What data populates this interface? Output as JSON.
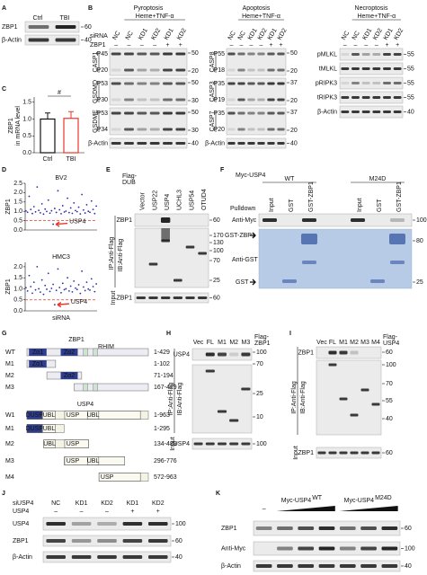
{
  "chart_data": [
    {
      "type": "bar",
      "panel_label": "C",
      "ylabel": [
        "ZBP1",
        "in mRNA level"
      ],
      "categories": [
        "Ctrl",
        "TBI"
      ],
      "values": [
        1.0,
        1.02
      ],
      "errors": [
        0.18,
        0.2
      ],
      "colors": [
        "#111111",
        "#e8372c"
      ],
      "ylim": [
        0,
        1.6
      ],
      "yticks": [
        {
          "value": 0,
          "label": "0.0"
        },
        {
          "value": 0.5,
          "label": "0.5"
        },
        {
          "value": 1,
          "label": "1.0"
        },
        {
          "value": 1.5,
          "label": "1.5"
        }
      ],
      "annotation": "#"
    },
    {
      "type": "scatter",
      "panel_label": "D",
      "title": "BV2",
      "ylabel": "ZBP1",
      "annotation": "USP4",
      "color": "#2b2ba8",
      "reference_line": 0.5,
      "reference_color": "#e8372c",
      "ylim": [
        0,
        2.5
      ],
      "yticks": [
        {
          "value": 0,
          "label": "0.0"
        },
        {
          "value": 0.5,
          "label": "0.5"
        },
        {
          "value": 1,
          "label": "1.0"
        },
        {
          "value": 1.5,
          "label": "1.5"
        },
        {
          "value": 2,
          "label": "2.0"
        },
        {
          "value": 2.5,
          "label": "2.5"
        }
      ],
      "values": [
        1.02,
        0.95,
        1.8,
        1.1,
        0.88,
        1.25,
        0.97,
        2.3,
        1.05,
        0.92,
        1.4,
        0.85,
        1.12,
        0.99,
        1.6,
        0.9,
        1.03,
        0.31,
        1.15,
        0.94,
        2.1,
        1.08,
        0.87,
        1.3,
        0.96,
        1.01,
        1.7,
        0.93,
        1.18,
        0.89,
        1.45,
        1.04,
        0.98,
        1.22,
        0.86,
        1.9,
        1.07,
        0.91,
        1.35,
        1.0,
        0.95,
        1.55,
        1.1,
        0.88,
        1.28
      ]
    },
    {
      "type": "scatter",
      "title": "HMC3",
      "ylabel": "ZBP1",
      "xlabel": "siRNA",
      "annotation": "USP4",
      "color": "#2b2ba8",
      "reference_line": 0.5,
      "reference_color": "#e8372c",
      "ylim": [
        0,
        2.2
      ],
      "yticks": [
        {
          "value": 0,
          "label": "0.0"
        },
        {
          "value": 0.5,
          "label": "0.5"
        },
        {
          "value": 1,
          "label": "1.0"
        },
        {
          "value": 1.5,
          "label": "1.5"
        },
        {
          "value": 2,
          "label": "2.0"
        }
      ],
      "values": [
        1.05,
        0.9,
        1.6,
        1.1,
        0.8,
        1.3,
        0.95,
        2.0,
        1.0,
        0.85,
        1.4,
        0.75,
        1.15,
        0.98,
        1.7,
        0.88,
        1.02,
        1.2,
        0.28,
        0.93,
        1.9,
        1.06,
        0.82,
        1.25,
        0.96,
        1.0,
        1.5,
        0.9,
        1.12,
        0.86,
        1.35,
        1.03,
        0.97,
        1.18,
        0.79,
        1.8,
        1.08,
        0.92,
        1.3,
        0.99,
        0.94,
        1.45,
        1.1,
        0.87,
        1.22
      ]
    }
  ],
  "panels": {
    "A": {
      "label": "A",
      "lanes": [
        "Ctrl",
        "TBI"
      ],
      "rows": [
        "ZBP1",
        "β-Actin"
      ],
      "markers": [
        60,
        40
      ]
    },
    "B": {
      "label": "B",
      "left": [
        "siRNA",
        "ZBP1"
      ],
      "groups": [
        {
          "title": "Pyroptosis",
          "treatment": "Heme+TNF-α",
          "lanes": [
            "NC",
            "NC",
            "KD1",
            "KD2",
            "KD1",
            "KD2"
          ],
          "signs": [
            "–",
            "–",
            "–",
            "–",
            "+",
            "+"
          ],
          "proteins": [
            "CASP1",
            "GSDMD",
            "GSDME"
          ],
          "forms": [
            [
              "P45",
              "P20"
            ],
            [
              "P53",
              "P30"
            ],
            [
              "P53",
              "P34"
            ]
          ],
          "loading": "β-Actin",
          "markers": [
            50,
            20,
            50,
            30,
            50,
            30,
            40
          ]
        },
        {
          "title": "Apoptosis",
          "treatment": "Heme+TNF-α",
          "lanes": [
            "NC",
            "NC",
            "KD1",
            "KD2",
            "KD1",
            "KD2"
          ],
          "signs": [
            "–",
            "–",
            "–",
            "–",
            "+",
            "+"
          ],
          "proteins": [
            "CASP8",
            "CASP3",
            "CASP7"
          ],
          "forms": [
            [
              "P55",
              "P18"
            ],
            [
              "P35",
              "P19"
            ],
            [
              "P35",
              "P20"
            ]
          ],
          "loading": "β-Actin",
          "markers": [
            50,
            20,
            37,
            20,
            37,
            20,
            40
          ]
        },
        {
          "title": "Necroptosis",
          "treatment": "Heme+TNF-α",
          "lanes": [
            "NC",
            "NC",
            "KD1",
            "KD2",
            "KD1",
            "KD2"
          ],
          "signs": [
            "–",
            "–",
            "–",
            "–",
            "+",
            "+"
          ],
          "rows": [
            "pMLKL",
            "tMLKL",
            "pRIPK3",
            "tRIPK3",
            "β-Actin"
          ],
          "markers": [
            55,
            55,
            55,
            55,
            40
          ]
        }
      ]
    },
    "E": {
      "label": "E",
      "header": [
        "Flag-",
        "DUB"
      ],
      "lanes": [
        "Vector",
        "USP22",
        "USP4",
        "UCHL3",
        "USP54",
        "OTUD4"
      ],
      "ip_row": "ZBP1",
      "ip": "IP:Anti-Flag",
      "ib": "IB:Anti-Flag",
      "input": "Input",
      "input_row": "ZBP1",
      "markers": [
        60,
        170,
        130,
        100,
        70,
        25,
        60
      ]
    },
    "F": {
      "label": "F",
      "construct": "Myc-USP4",
      "groups": [
        "WT",
        "M24D"
      ],
      "lanes": [
        "Input",
        "GST",
        "GST-ZBP1",
        "Input",
        "GST",
        "GST-ZBP1"
      ],
      "pulldown": "Pulldown",
      "rows": [
        "Anti-Myc",
        "GST-ZBP1",
        "Anti-GST",
        "GST"
      ],
      "markers": [
        100,
        80,
        25
      ]
    },
    "G": {
      "label": "G",
      "zbp1": {
        "title": "ZBP1",
        "motif": "RHIM",
        "domains": [
          "Zα1",
          "Zα2"
        ],
        "constructs": [
          {
            "name": "WT",
            "range": "1-429"
          },
          {
            "name": "M1",
            "range": "1-102"
          },
          {
            "name": "M2",
            "range": "71-194"
          },
          {
            "name": "M3",
            "range": "167-429"
          }
        ]
      },
      "usp4": {
        "title": "USP4",
        "domains": [
          "DUSP",
          "UBL",
          "USP",
          "UBL"
        ],
        "constructs": [
          {
            "name": "W1",
            "range": "1-963"
          },
          {
            "name": "M1",
            "range": "1-295"
          },
          {
            "name": "M2",
            "range": "134-489"
          },
          {
            "name": "M3",
            "range": "296-776"
          },
          {
            "name": "M4",
            "range": "572-963"
          }
        ]
      }
    },
    "H": {
      "label": "H",
      "lanes": [
        "Vec",
        "FL",
        "M1",
        "M2",
        "M3"
      ],
      "header": [
        "Flag-",
        "ZBP1"
      ],
      "ip_row": "USP4",
      "ip": "IP:Anti-Flag",
      "ib": "IB:Anti-Flag",
      "input": "Input",
      "input_row": "USP4",
      "markers": [
        100,
        70,
        25,
        10,
        100
      ]
    },
    "I": {
      "label": "I",
      "lanes": [
        "Vec",
        "FL",
        "M1",
        "M2",
        "M3",
        "M4"
      ],
      "header": [
        "Flag-",
        "USP4"
      ],
      "ip_row": "ZBP1",
      "ip": "IP:Anti-Flag",
      "ib": "IB:Anti-Flag",
      "input": "Input",
      "input_row": "ZBP1",
      "markers": [
        60,
        100,
        70,
        55,
        40,
        60
      ]
    },
    "J": {
      "label": "J",
      "row_labels": [
        "siUSP4",
        "USP4"
      ],
      "lanes": [
        "NC",
        "KD1",
        "KD2",
        "KD1",
        "KD2"
      ],
      "signs": [
        "–",
        "–",
        "–",
        "+",
        "+"
      ],
      "rows": [
        "USP4",
        "ZBP1",
        "β-Actin"
      ],
      "markers": [
        100,
        60,
        40
      ]
    },
    "K": {
      "label": "K",
      "control": "–",
      "groups": [
        {
          "name": "Myc-USP4",
          "sup": "WT"
        },
        {
          "name": "Myc-USP4",
          "sup": "M24D"
        }
      ],
      "rows": [
        "ZBP1",
        "Anti-Myc",
        "β-Actin"
      ],
      "markers": [
        60,
        100,
        40
      ]
    }
  }
}
